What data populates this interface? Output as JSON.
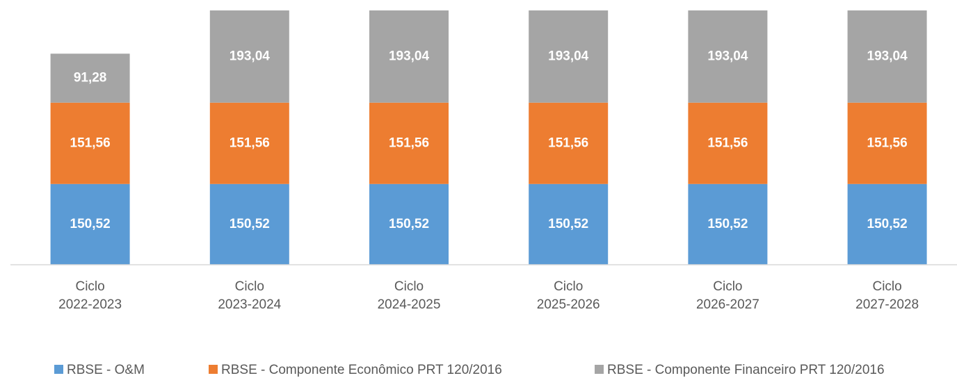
{
  "chart_data": {
    "type": "stacked_bar",
    "categories": [
      "Ciclo\n2022-2023",
      "Ciclo\n2023-2024",
      "Ciclo\n2024-2025",
      "Ciclo\n2025-2026",
      "Ciclo\n2026-2027",
      "Ciclo\n2027-2028"
    ],
    "series": [
      {
        "name": "RBSE - O&M",
        "color": "#5b9bd5",
        "values": [
          150.52,
          150.52,
          150.52,
          150.52,
          150.52,
          150.52
        ],
        "value_labels": [
          "150,52",
          "150,52",
          "150,52",
          "150,52",
          "150,52",
          "150,52"
        ]
      },
      {
        "name": "RBSE - Componente Econômico PRT 120/2016",
        "color": "#ed7d31",
        "values": [
          151.56,
          151.56,
          151.56,
          151.56,
          151.56,
          151.56
        ],
        "value_labels": [
          "151,56",
          "151,56",
          "151,56",
          "151,56",
          "151,56",
          "151,56"
        ]
      },
      {
        "name": "RBSE - Componente Financeiro PRT 120/2016",
        "color": "#a5a5a5",
        "values": [
          91.28,
          193.04,
          193.04,
          193.04,
          193.04,
          193.04
        ],
        "value_labels": [
          "91,28",
          "193,04",
          "193,04",
          "193,04",
          "193,04",
          "193,04"
        ]
      }
    ],
    "ylim": [
      0,
      474
    ],
    "legend": "bottom"
  }
}
